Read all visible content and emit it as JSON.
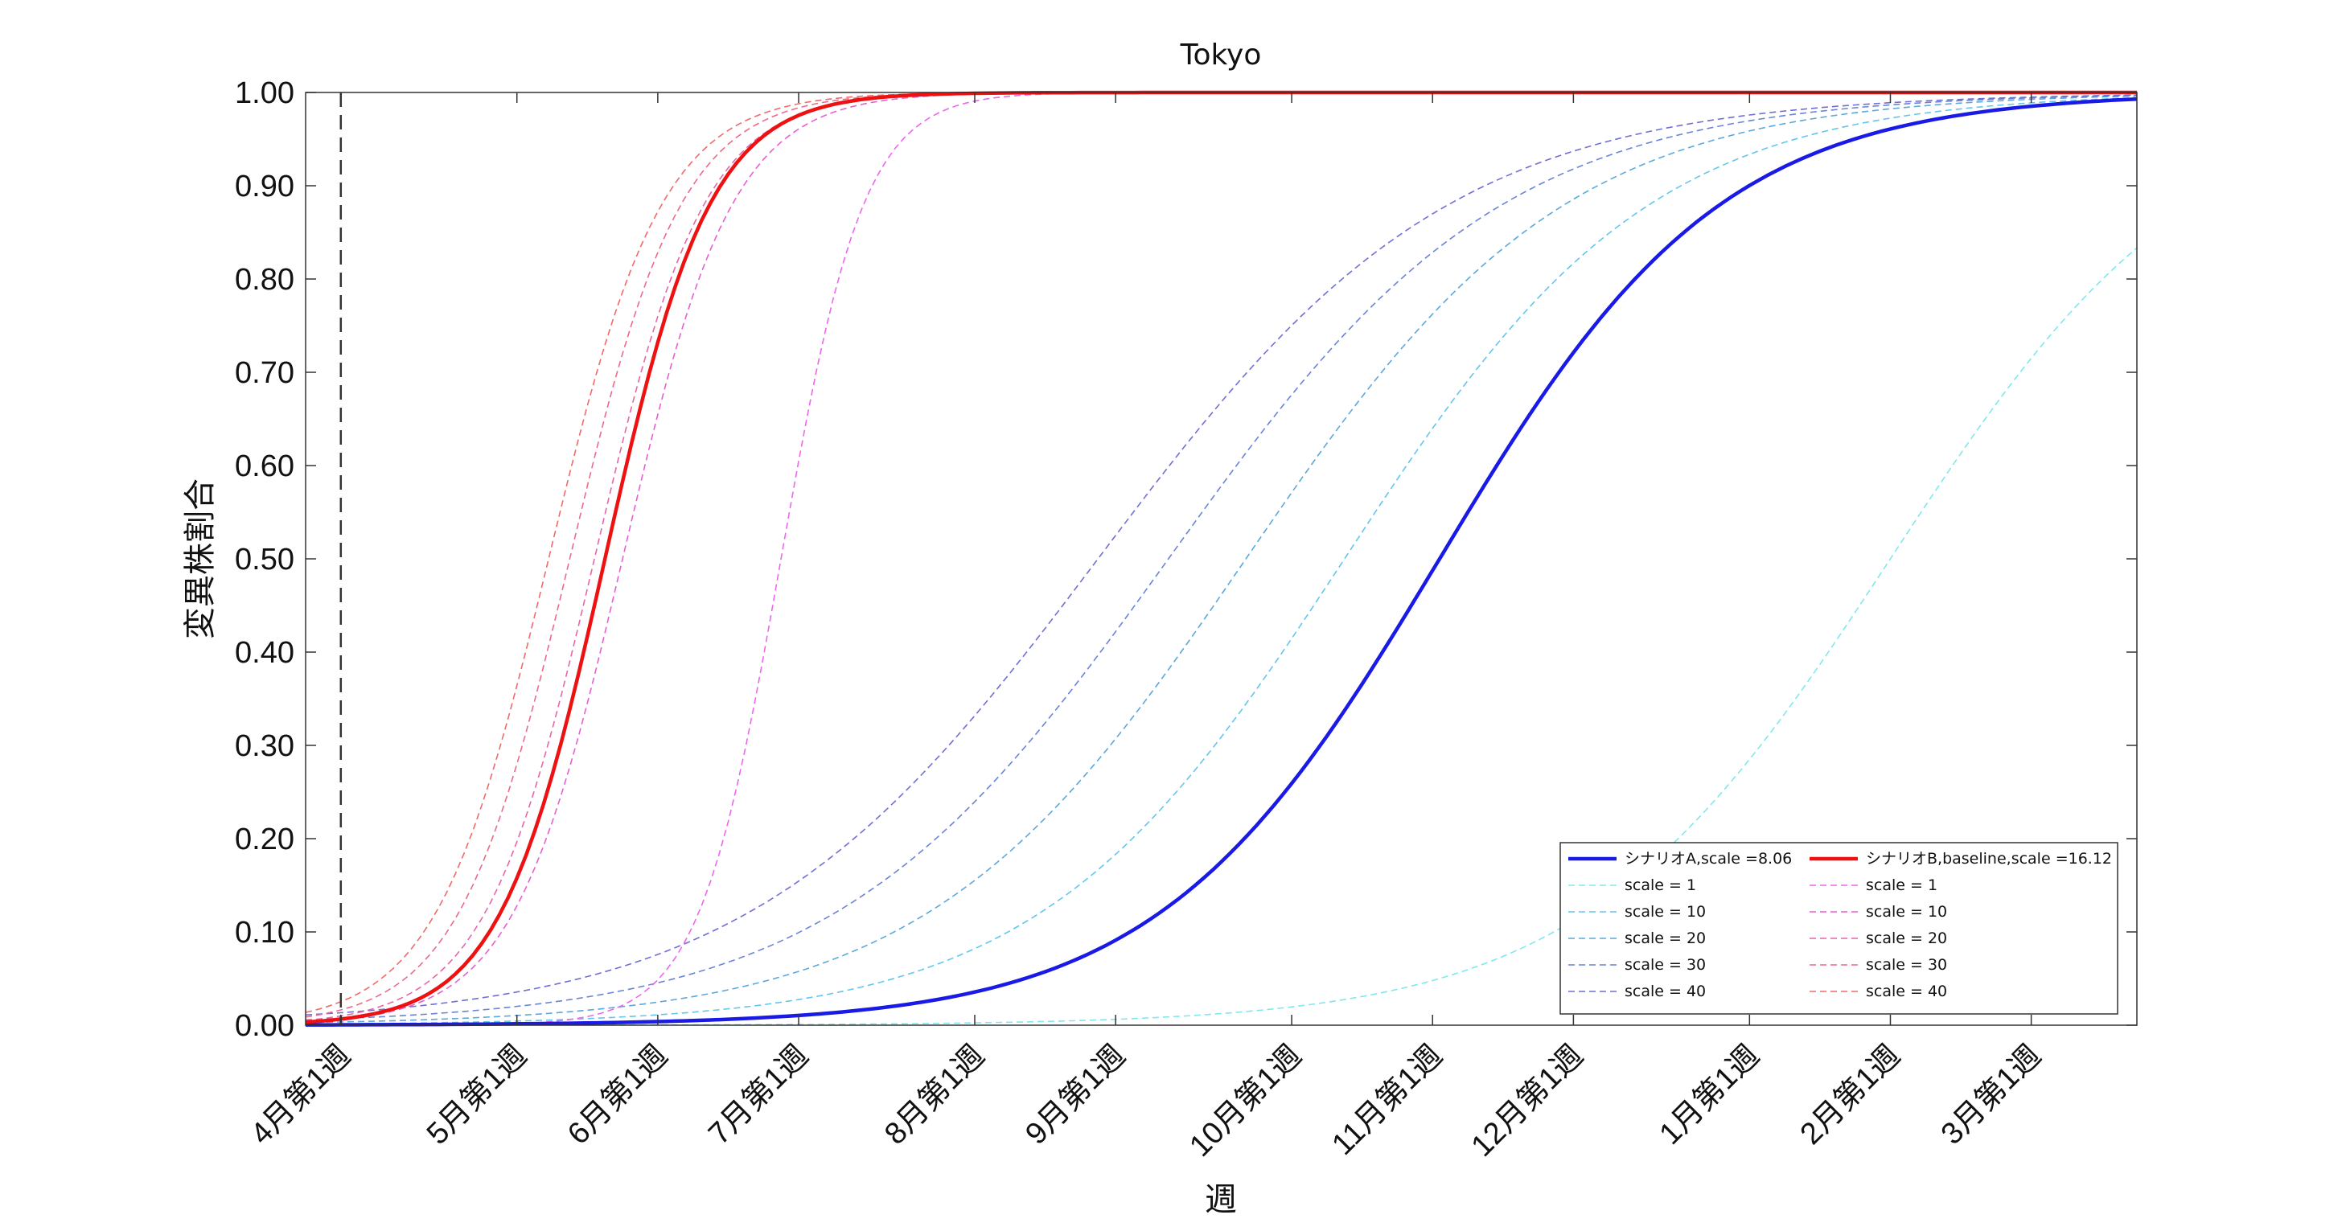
{
  "chart_data": {
    "type": "line",
    "title": "Tokyo",
    "xlabel": "週",
    "ylabel": "変異株割合",
    "ylim": [
      0,
      1
    ],
    "yticks": [
      "0.00",
      "0.10",
      "0.20",
      "0.30",
      "0.40",
      "0.50",
      "0.60",
      "0.70",
      "0.80",
      "0.90",
      "1.00"
    ],
    "xlim": [
      -1,
      51
    ],
    "xticks": [
      {
        "week": 0,
        "label": "4月第1週"
      },
      {
        "week": 5,
        "label": "5月第1週"
      },
      {
        "week": 9,
        "label": "6月第1週"
      },
      {
        "week": 13,
        "label": "7月第1週"
      },
      {
        "week": 18,
        "label": "8月第1週"
      },
      {
        "week": 22,
        "label": "9月第1週"
      },
      {
        "week": 27,
        "label": "10月第1週"
      },
      {
        "week": 31,
        "label": "11月第1週"
      },
      {
        "week": 35,
        "label": "12月第1週"
      },
      {
        "week": 40,
        "label": "1月第1週"
      },
      {
        "week": 44,
        "label": "2月第1週"
      },
      {
        "week": 48,
        "label": "3月第1週"
      }
    ],
    "vline_week": 0,
    "grid": false,
    "legend_position": "bottom-right",
    "series": [
      {
        "name": "シナリオA,scale =8.06",
        "color": "#1a1ae6",
        "style": "solid",
        "width": 4.5,
        "x0": 31.2,
        "k": 0.25
      },
      {
        "name": "scale = 1",
        "color": "#7fe8ee",
        "style": "dashed",
        "width": 1.6,
        "x0": 44.0,
        "k": 0.23
      },
      {
        "name": "scale = 10",
        "color": "#63c6ec",
        "style": "dashed",
        "width": 1.6,
        "x0": 28.5,
        "k": 0.23
      },
      {
        "name": "scale = 20",
        "color": "#5aa8dc",
        "style": "dashed",
        "width": 1.6,
        "x0": 25.7,
        "k": 0.22
      },
      {
        "name": "scale = 30",
        "color": "#6a84d6",
        "style": "dashed",
        "width": 1.6,
        "x0": 23.5,
        "k": 0.21
      },
      {
        "name": "scale = 40",
        "color": "#6f6fd4",
        "style": "dashed",
        "width": 1.6,
        "x0": 21.5,
        "k": 0.2
      },
      {
        "name": "シナリオB,baseline,scale =16.12",
        "color": "#ee1111",
        "style": "solid",
        "width": 4.5,
        "x0": 7.5,
        "k": 0.67
      },
      {
        "name": "scale = 1",
        "color": "#ee66ee",
        "style": "dashed",
        "width": 1.6,
        "x0": 12.5,
        "k": 0.85
      },
      {
        "name": "scale = 10",
        "color": "#e85fd0",
        "style": "dashed",
        "width": 1.6,
        "x0": 8.0,
        "k": 0.64
      },
      {
        "name": "scale = 20",
        "color": "#e865a8",
        "style": "dashed",
        "width": 1.6,
        "x0": 7.2,
        "k": 0.64
      },
      {
        "name": "scale = 30",
        "color": "#ec6a88",
        "style": "dashed",
        "width": 1.6,
        "x0": 6.5,
        "k": 0.63
      },
      {
        "name": "scale = 40",
        "color": "#f06a6a",
        "style": "dashed",
        "width": 1.6,
        "x0": 5.9,
        "k": 0.62
      }
    ]
  }
}
